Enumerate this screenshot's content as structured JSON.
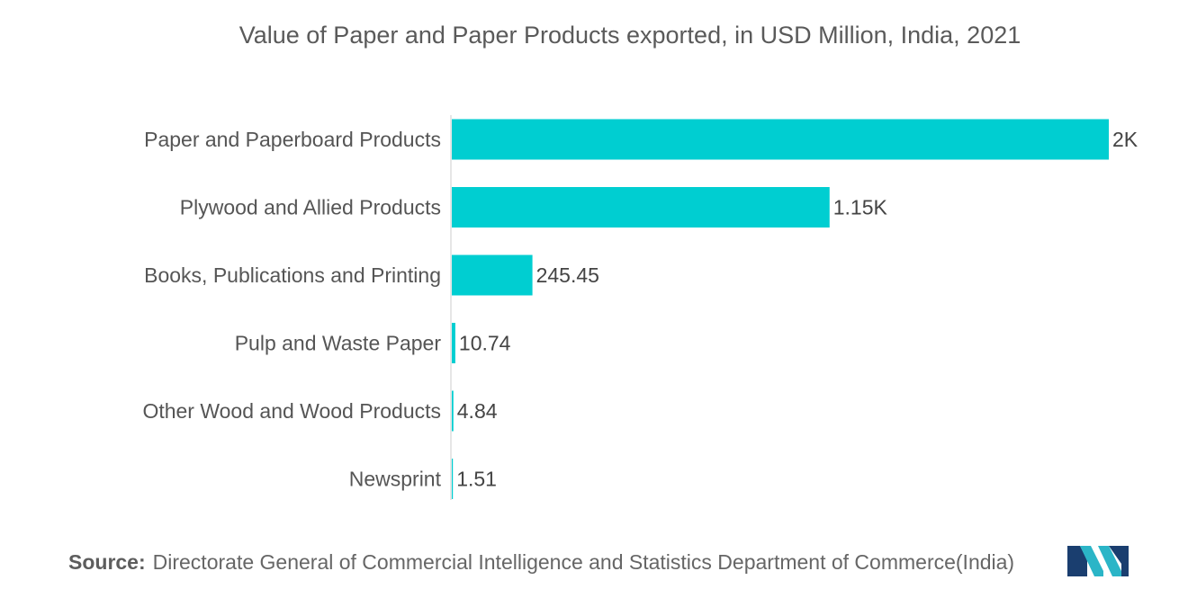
{
  "chart_data": {
    "type": "bar",
    "orientation": "horizontal",
    "title": "Value of Paper and Paper Products exported, in USD Million, India, 2021",
    "categories": [
      "Paper and Paperboard Products",
      "Plywood and Allied Products",
      "Books, Publications and Printing",
      "Pulp and Waste Paper",
      "Other Wood and Wood Products",
      "Newsprint"
    ],
    "values": [
      2000,
      1150,
      245.45,
      10.74,
      4.84,
      1.51
    ],
    "value_labels": [
      "2K",
      "1.15K",
      "245.45",
      "10.74",
      "4.84",
      "1.51"
    ],
    "xlim": [
      0,
      2000
    ],
    "grid": false,
    "legend": "none",
    "bar_color": "#00CED1",
    "axis_color": "#cccccc"
  },
  "source": {
    "prefix": "Source:",
    "text": "Directorate General of Commercial Intelligence and Statistics Department of Commerce(India)"
  },
  "logo": {
    "icon": "mordor-intelligence-logo-icon",
    "colors": [
      "#1a3e6f",
      "#2bb5c7"
    ]
  }
}
